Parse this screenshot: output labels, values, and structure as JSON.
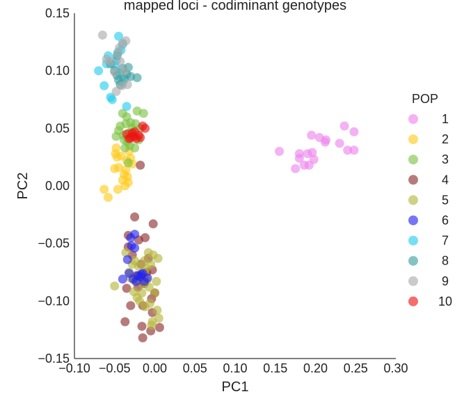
{
  "chart_data": {
    "type": "scatter",
    "title": "mapped loci - codiminant genotypes",
    "xlabel": "PC1",
    "ylabel": "PC2",
    "xlim": [
      -0.1,
      0.3
    ],
    "ylim": [
      -0.15,
      0.15
    ],
    "x_ticks": [
      "−0.10",
      "−0.05",
      "0.00",
      "0.05",
      "0.10",
      "0.15",
      "0.20",
      "0.25",
      "0.30"
    ],
    "y_ticks": [
      "−0.15",
      "−0.10",
      "−0.05",
      "0.00",
      "0.05",
      "0.10",
      "0.15"
    ],
    "grid": false,
    "legend": {
      "title": "POP",
      "placement": "right"
    },
    "series": [
      {
        "name": "1",
        "color": "#ee82ee",
        "points": [
          [
            0.155,
            0.03
          ],
          [
            0.175,
            0.015
          ],
          [
            0.18,
            0.028
          ],
          [
            0.18,
            0.024
          ],
          [
            0.186,
            0.018
          ],
          [
            0.19,
            0.028
          ],
          [
            0.192,
            0.018
          ],
          [
            0.195,
            0.044
          ],
          [
            0.196,
            0.029
          ],
          [
            0.198,
            0.023
          ],
          [
            0.205,
            0.042
          ],
          [
            0.212,
            0.038
          ],
          [
            0.213,
            0.04
          ],
          [
            0.23,
            0.037
          ],
          [
            0.236,
            0.052
          ],
          [
            0.24,
            0.031
          ],
          [
            0.248,
            0.031
          ],
          [
            0.248,
            0.047
          ]
        ]
      },
      {
        "name": "2",
        "color": "#ffc91a",
        "points": [
          [
            -0.063,
            -0.003
          ],
          [
            -0.058,
            -0.01
          ],
          [
            -0.05,
            0.015
          ],
          [
            -0.049,
            0.028
          ],
          [
            -0.048,
            0.033
          ],
          [
            -0.047,
            0.025
          ],
          [
            -0.046,
            -0.003
          ],
          [
            -0.045,
            0.016
          ],
          [
            -0.042,
            0.026
          ],
          [
            -0.04,
            0.005
          ],
          [
            -0.038,
            0.01
          ],
          [
            -0.037,
            0.0
          ],
          [
            -0.036,
            0.014
          ],
          [
            -0.035,
            0.022
          ],
          [
            -0.034,
            0.008
          ],
          [
            -0.033,
            0.003
          ],
          [
            -0.032,
            0.03
          ],
          [
            -0.03,
            0.024
          ],
          [
            -0.028,
            0.019
          ]
        ]
      },
      {
        "name": "3",
        "color": "#7cc242",
        "points": [
          [
            -0.048,
            0.043
          ],
          [
            -0.045,
            0.048
          ],
          [
            -0.043,
            0.052
          ],
          [
            -0.04,
            0.063
          ],
          [
            -0.039,
            0.044
          ],
          [
            -0.038,
            0.04
          ],
          [
            -0.037,
            0.033
          ],
          [
            -0.036,
            0.054
          ],
          [
            -0.035,
            0.06
          ],
          [
            -0.034,
            0.038
          ],
          [
            -0.033,
            0.02
          ],
          [
            -0.032,
            0.046
          ],
          [
            -0.031,
            0.035
          ],
          [
            -0.03,
            0.055
          ],
          [
            -0.028,
            0.05
          ],
          [
            -0.027,
            0.043
          ],
          [
            -0.025,
            0.033
          ],
          [
            -0.024,
            0.054
          ],
          [
            -0.022,
            0.065
          ],
          [
            -0.02,
            0.04
          ],
          [
            -0.018,
            0.05
          ],
          [
            -0.014,
            0.063
          ]
        ]
      },
      {
        "name": "4",
        "color": "#8b2a2a",
        "points": [
          [
            -0.037,
            -0.118
          ],
          [
            -0.035,
            -0.089
          ],
          [
            -0.033,
            -0.043
          ],
          [
            -0.033,
            -0.053
          ],
          [
            -0.03,
            -0.104
          ],
          [
            -0.028,
            -0.06
          ],
          [
            -0.025,
            -0.027
          ],
          [
            -0.023,
            -0.078
          ],
          [
            -0.021,
            -0.088
          ],
          [
            -0.02,
            -0.047
          ],
          [
            -0.018,
            0.018
          ],
          [
            -0.017,
            -0.068
          ],
          [
            -0.016,
            -0.122
          ],
          [
            -0.015,
            -0.132
          ],
          [
            -0.015,
            -0.104
          ],
          [
            -0.013,
            -0.085
          ],
          [
            -0.012,
            -0.045
          ],
          [
            -0.01,
            -0.075
          ],
          [
            -0.008,
            -0.063
          ],
          [
            -0.005,
            -0.126
          ],
          [
            -0.004,
            -0.098
          ],
          [
            -0.003,
            -0.11
          ],
          [
            -0.003,
            -0.073
          ],
          [
            -0.002,
            -0.033
          ],
          [
            0.0,
            -0.093
          ],
          [
            0.006,
            -0.123
          ]
        ]
      },
      {
        "name": "5",
        "color": "#b5b53a",
        "points": [
          [
            -0.05,
            -0.087
          ],
          [
            -0.036,
            -0.058
          ],
          [
            -0.032,
            -0.075
          ],
          [
            -0.03,
            -0.08
          ],
          [
            -0.028,
            -0.068
          ],
          [
            -0.026,
            -0.092
          ],
          [
            -0.025,
            -0.065
          ],
          [
            -0.024,
            -0.083
          ],
          [
            -0.022,
            -0.097
          ],
          [
            -0.02,
            -0.07
          ],
          [
            -0.019,
            -0.1
          ],
          [
            -0.018,
            -0.078
          ],
          [
            -0.016,
            -0.093
          ],
          [
            -0.015,
            -0.085
          ],
          [
            -0.013,
            -0.065
          ],
          [
            -0.012,
            -0.105
          ],
          [
            -0.011,
            -0.072
          ],
          [
            -0.01,
            -0.082
          ],
          [
            -0.008,
            -0.058
          ],
          [
            -0.007,
            -0.088
          ],
          [
            -0.006,
            -0.102
          ],
          [
            -0.005,
            -0.068
          ],
          [
            -0.004,
            -0.121
          ],
          [
            -0.003,
            -0.118
          ],
          [
            -0.002,
            -0.06
          ],
          [
            0.0,
            -0.093
          ],
          [
            0.002,
            -0.083
          ],
          [
            0.003,
            -0.108
          ],
          [
            0.004,
            -0.063
          ],
          [
            0.005,
            -0.115
          ]
        ]
      },
      {
        "name": "6",
        "color": "#2222ee",
        "points": [
          [
            -0.04,
            -0.081
          ],
          [
            -0.034,
            -0.064
          ],
          [
            -0.032,
            -0.076
          ],
          [
            -0.03,
            -0.045
          ],
          [
            -0.029,
            -0.052
          ],
          [
            -0.027,
            -0.081
          ],
          [
            -0.025,
            -0.042
          ],
          [
            -0.025,
            -0.054
          ],
          [
            -0.023,
            -0.083
          ],
          [
            -0.021,
            -0.078
          ],
          [
            -0.018,
            -0.079
          ],
          [
            -0.017,
            -0.077
          ],
          [
            -0.015,
            -0.076
          ],
          [
            -0.013,
            -0.083
          ],
          [
            -0.009,
            -0.08
          ]
        ]
      },
      {
        "name": "7",
        "color": "#22ccee",
        "points": [
          [
            -0.07,
            0.1
          ],
          [
            -0.063,
            0.087
          ],
          [
            -0.06,
            0.106
          ],
          [
            -0.058,
            0.113
          ],
          [
            -0.055,
            0.077
          ],
          [
            -0.053,
            0.075
          ],
          [
            -0.05,
            0.105
          ],
          [
            -0.048,
            0.109
          ],
          [
            -0.046,
            0.116
          ],
          [
            -0.045,
            0.13
          ],
          [
            -0.044,
            0.098
          ],
          [
            -0.042,
            0.118
          ],
          [
            -0.04,
            0.123
          ],
          [
            -0.04,
            0.09
          ],
          [
            -0.035,
            0.069
          ]
        ]
      },
      {
        "name": "8",
        "color": "#3a9e9e",
        "points": [
          [
            -0.055,
            0.106
          ],
          [
            -0.05,
            0.1
          ],
          [
            -0.047,
            0.096
          ],
          [
            -0.045,
            0.092
          ],
          [
            -0.043,
            0.088
          ],
          [
            -0.04,
            0.102
          ],
          [
            -0.038,
            0.093
          ],
          [
            -0.035,
            0.097
          ],
          [
            -0.033,
            0.103
          ],
          [
            -0.03,
            0.095
          ],
          [
            -0.022,
            0.094
          ],
          [
            -0.047,
            0.113
          ]
        ]
      },
      {
        "name": "9",
        "color": "#aaaaaa",
        "points": [
          [
            -0.065,
            0.131
          ],
          [
            -0.06,
            0.11
          ],
          [
            -0.055,
            0.108
          ],
          [
            -0.05,
            0.099
          ],
          [
            -0.048,
            0.082
          ],
          [
            -0.046,
            0.115
          ],
          [
            -0.044,
            0.12
          ],
          [
            -0.043,
            0.108
          ],
          [
            -0.041,
            0.087
          ],
          [
            -0.04,
            0.124
          ],
          [
            -0.038,
            0.1
          ],
          [
            -0.036,
            0.126
          ],
          [
            -0.034,
            0.088
          ]
        ]
      },
      {
        "name": "10",
        "color": "#ee1111",
        "points": [
          [
            -0.035,
            0.045
          ],
          [
            -0.032,
            0.041
          ],
          [
            -0.03,
            0.042
          ],
          [
            -0.028,
            0.046
          ],
          [
            -0.026,
            0.043
          ],
          [
            -0.025,
            0.047
          ],
          [
            -0.023,
            0.041
          ],
          [
            -0.02,
            0.044
          ],
          [
            -0.018,
            0.042
          ],
          [
            -0.015,
            0.052
          ],
          [
            -0.012,
            0.05
          ]
        ]
      }
    ]
  }
}
